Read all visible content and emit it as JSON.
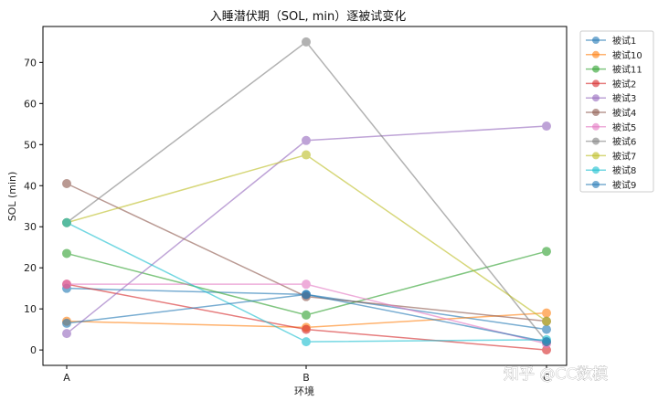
{
  "chart_data": {
    "type": "line",
    "title": "入睡潜伏期（SOL, min）逐被试变化",
    "xlabel": "环境",
    "ylabel": "SOL (min)",
    "categories": [
      "A",
      "B",
      "C"
    ],
    "ylim": [
      -3.75,
      78.75
    ],
    "yticks": [
      0,
      10,
      20,
      30,
      40,
      50,
      60,
      70
    ],
    "grid": false,
    "legend_position": "outside-top-right",
    "series": [
      {
        "name": "被试1",
        "values": [
          15.0,
          13.5,
          5.0
        ],
        "color": "#1f77b4"
      },
      {
        "name": "被试10",
        "values": [
          7.0,
          5.5,
          9.0
        ],
        "color": "#ff7f0e"
      },
      {
        "name": "被试11",
        "values": [
          23.5,
          8.5,
          24.0
        ],
        "color": "#2ca02c"
      },
      {
        "name": "被试2",
        "values": [
          16.0,
          5.0,
          0.0
        ],
        "color": "#d62728"
      },
      {
        "name": "被试3",
        "values": [
          4.0,
          51.0,
          54.5
        ],
        "color": "#9467bd"
      },
      {
        "name": "被试4",
        "values": [
          40.5,
          13.0,
          7.0
        ],
        "color": "#8c564b"
      },
      {
        "name": "被试5",
        "values": [
          16.0,
          16.0,
          1.5
        ],
        "color": "#e377c2"
      },
      {
        "name": "被试6",
        "values": [
          31.0,
          75.0,
          2.0
        ],
        "color": "#7f7f7f"
      },
      {
        "name": "被试7",
        "values": [
          31.0,
          47.5,
          7.0
        ],
        "color": "#bcbd22"
      },
      {
        "name": "被试8",
        "values": [
          31.0,
          2.0,
          2.5
        ],
        "color": "#17becf"
      },
      {
        "name": "被试9",
        "values": [
          6.5,
          13.5,
          2.0
        ],
        "color": "#1f77b4"
      }
    ]
  },
  "watermark": "知乎 @CC数模"
}
